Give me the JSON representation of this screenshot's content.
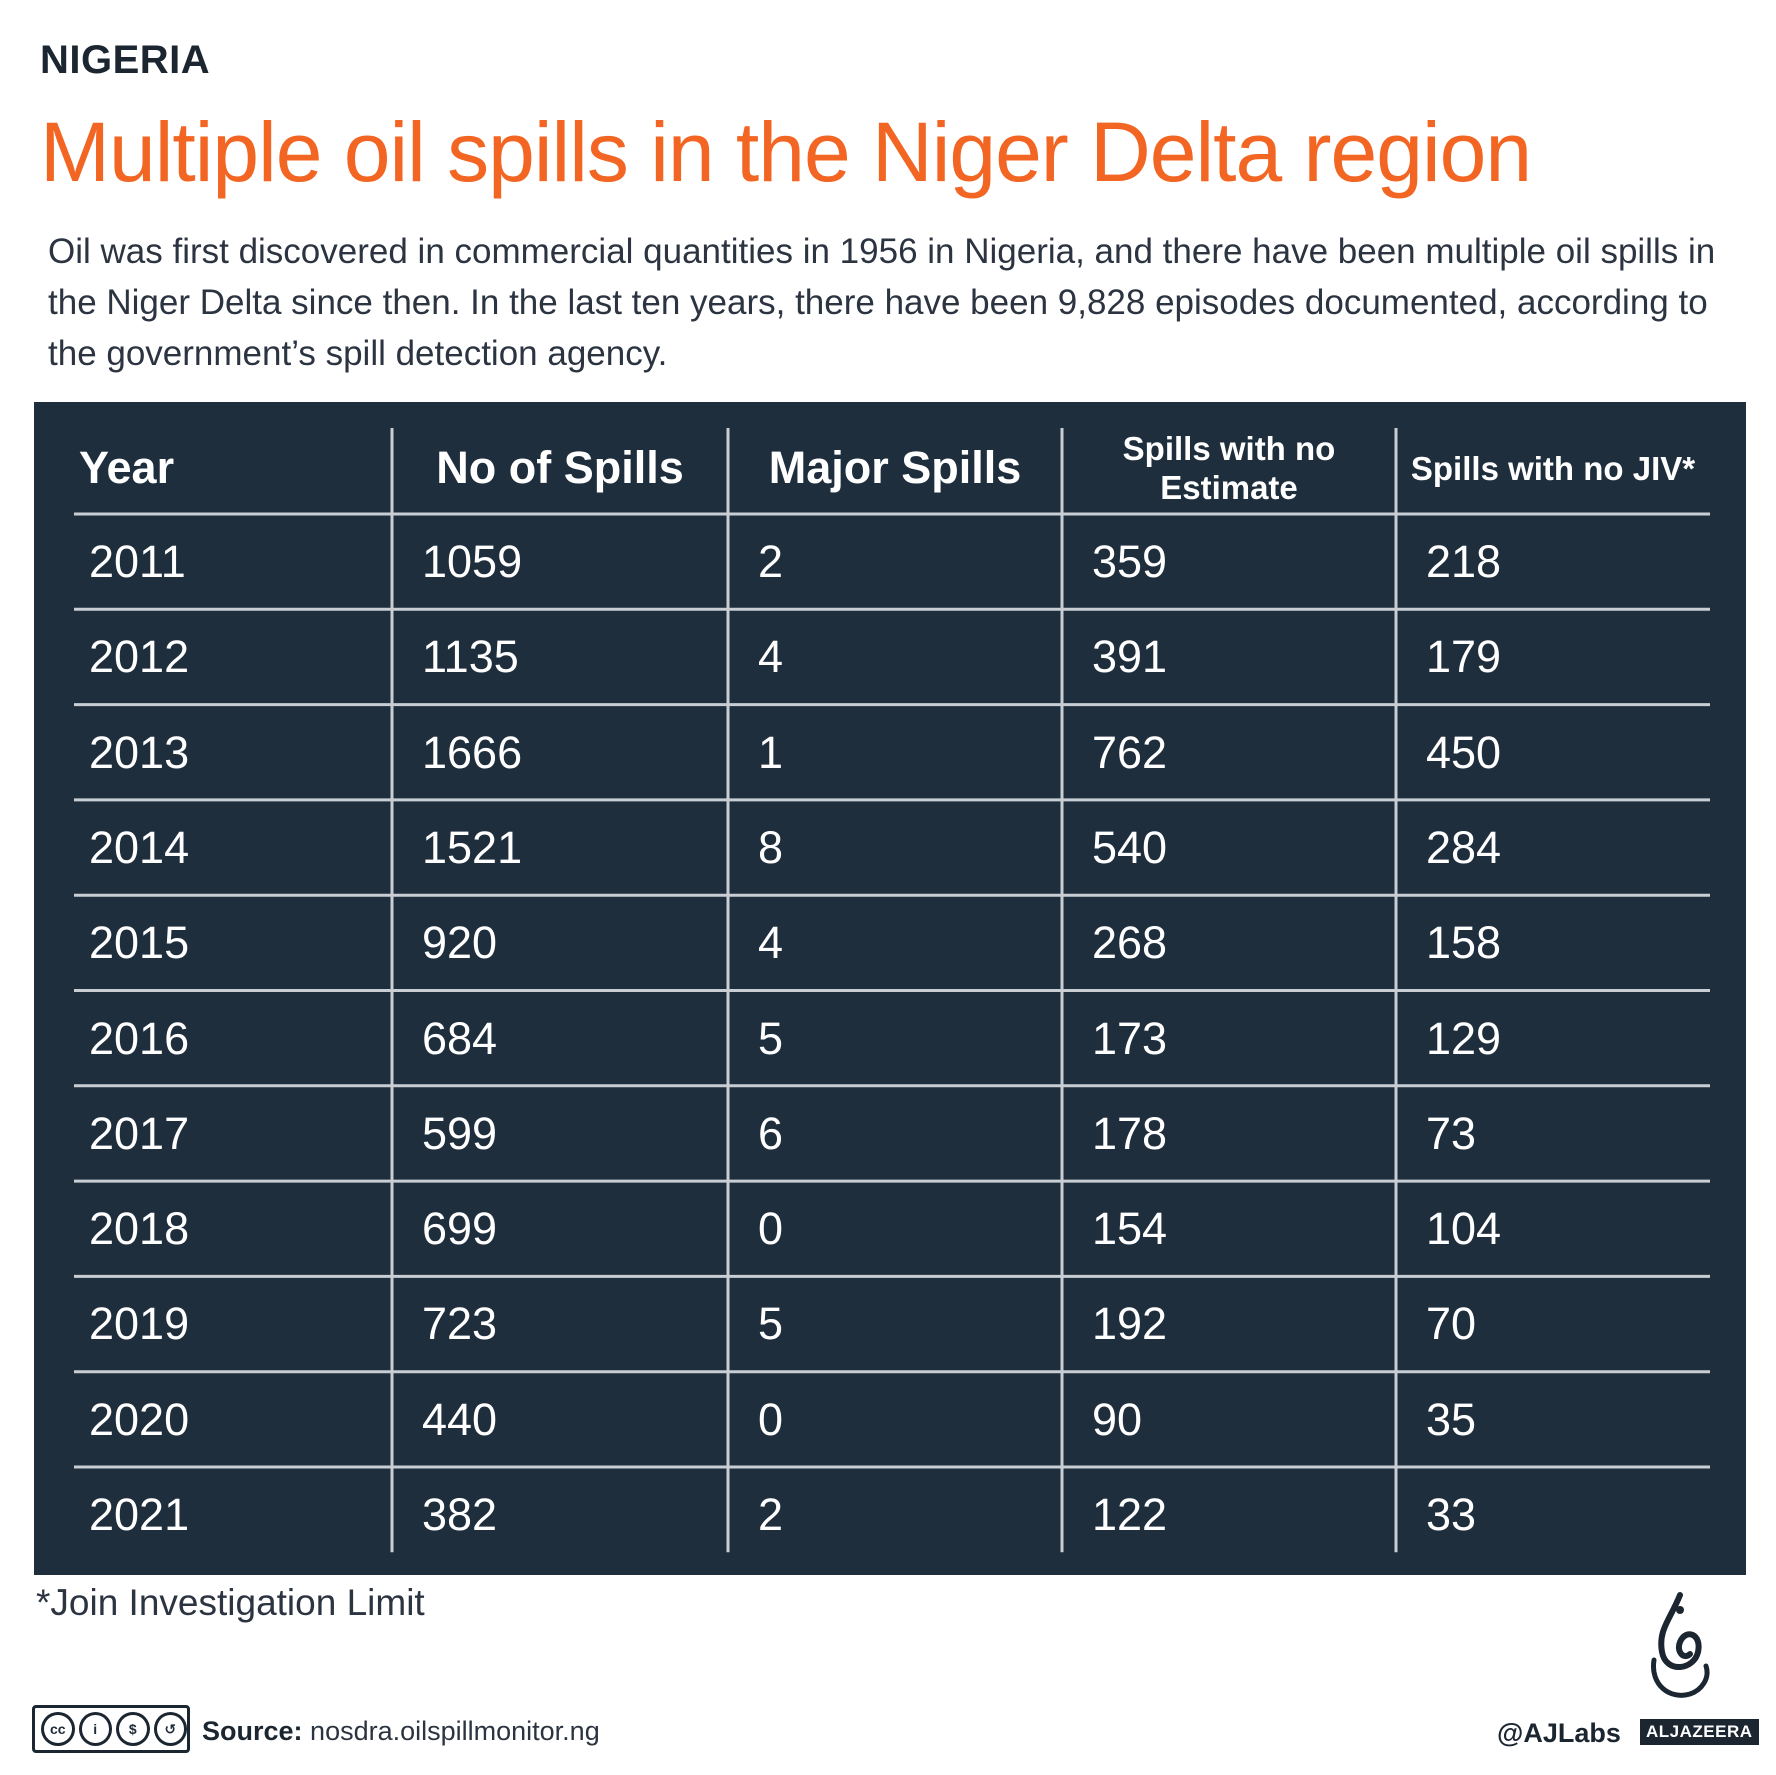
{
  "kicker": "NIGERIA",
  "title": "Multiple oil spills in the Niger Delta region",
  "subtitle": "Oil was first discovered in commercial quantities in 1956 in Nigeria, and there have been multiple oil spills in the Niger Delta since then. In the last ten years, there have been 9,828 episodes documented, according to the government’s spill detection agency.",
  "chart_data": {
    "type": "table",
    "columns": [
      "Year",
      "No of Spills",
      "Major Spills",
      "Spills with no Estimate",
      "Spills with no JIV*"
    ],
    "rows": [
      [
        "2011",
        "1059",
        "2",
        "359",
        "218"
      ],
      [
        "2012",
        "1135",
        "4",
        "391",
        "179"
      ],
      [
        "2013",
        "1666",
        "1",
        "762",
        "450"
      ],
      [
        "2014",
        "1521",
        "8",
        "540",
        "284"
      ],
      [
        "2015",
        "920",
        "4",
        "268",
        "158"
      ],
      [
        "2016",
        "684",
        "5",
        "173",
        "129"
      ],
      [
        "2017",
        "599",
        "6",
        "178",
        "73"
      ],
      [
        "2018",
        "699",
        "0",
        "154",
        "104"
      ],
      [
        "2019",
        "723",
        "5",
        "192",
        "70"
      ],
      [
        "2020",
        "440",
        "0",
        "90",
        "35"
      ],
      [
        "2021",
        "382",
        "2",
        "122",
        "33"
      ]
    ]
  },
  "footnote": "*Join Investigation Limit",
  "footer": {
    "source_label": "Source:",
    "source_value": "nosdra.oilspillmonitor.ng",
    "handle": "@AJLabs",
    "brand": "ALJAZEERA",
    "license_icon": "creative-commons-by-nc-sa-icon"
  },
  "colors": {
    "title": "#f26522",
    "table_bg": "#1f2e3d",
    "table_text": "#ffffff",
    "rule": "#c8ced4"
  }
}
